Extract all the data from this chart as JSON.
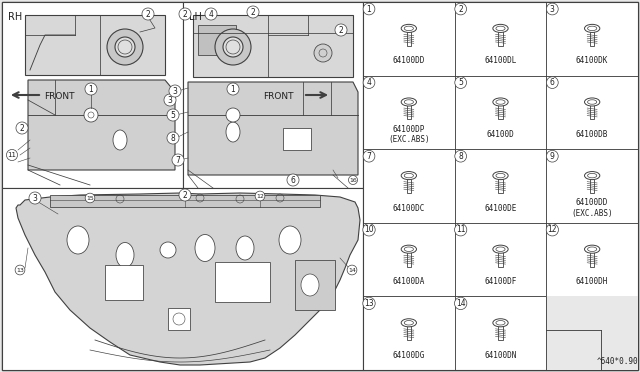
{
  "bg_color": "#e8e8e8",
  "panel_bg": "#ffffff",
  "line_color": "#404040",
  "text_color": "#202020",
  "watermark": "^640*0.90",
  "rh_label": "RH",
  "lh_label": "LH",
  "front_label": "FRONT",
  "parts": [
    [
      "1",
      "64100DD"
    ],
    [
      "2",
      "64100DL"
    ],
    [
      "3",
      "64100DK"
    ],
    [
      "4",
      "64100DP\n(EXC.ABS)"
    ],
    [
      "5",
      "64100D"
    ],
    [
      "6",
      "64100DB"
    ],
    [
      "7",
      "64100DC"
    ],
    [
      "8",
      "64100DE"
    ],
    [
      "9",
      "64100DD\n(EXC.ABS)"
    ],
    [
      "10",
      "64100DA"
    ],
    [
      "11",
      "64100DF"
    ],
    [
      "12",
      "64100DH"
    ],
    [
      "13",
      "64100DG"
    ],
    [
      "14",
      "64100DN"
    ]
  ]
}
